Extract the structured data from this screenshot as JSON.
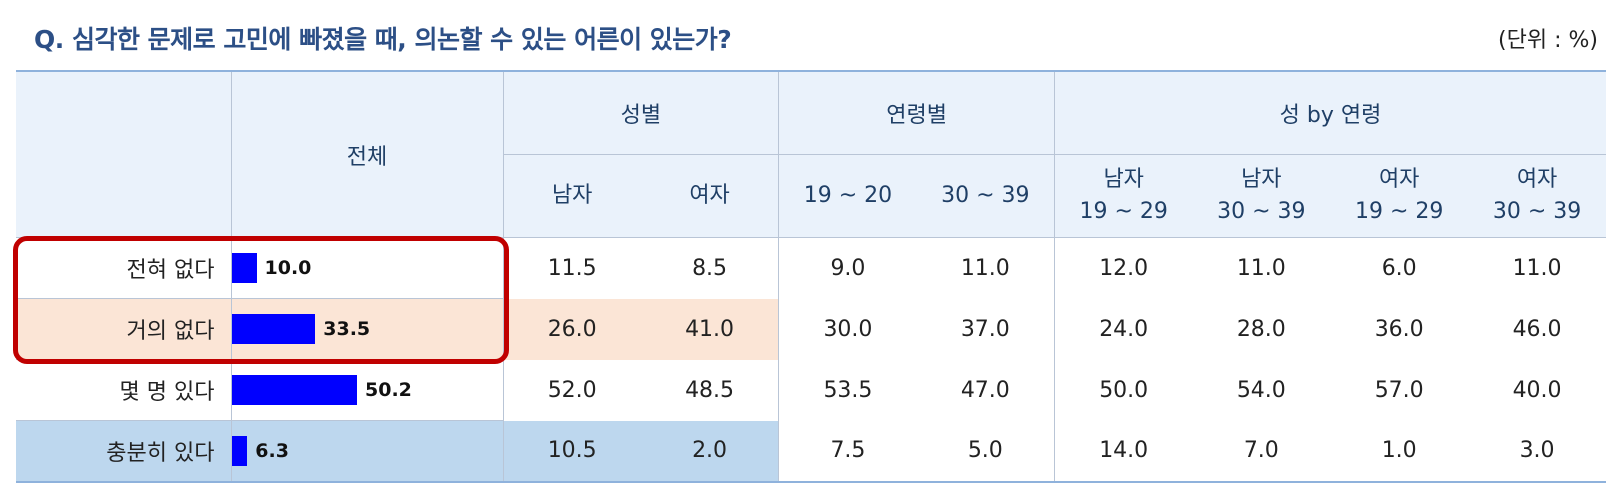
{
  "title": "Q. 심각한 문제로 고민에 빠졌을 때, 의논할 수 있는 어른이 있는가?",
  "unit": "(단위 : %)",
  "header": {
    "total": "전체",
    "groups": [
      "성별",
      "연령별",
      "성 by 연령"
    ],
    "subcolumns": [
      {
        "line1": "남자",
        "line2": ""
      },
      {
        "line1": "여자",
        "line2": ""
      },
      {
        "line1": "19 ~ 20",
        "line2": ""
      },
      {
        "line1": "30 ~ 39",
        "line2": ""
      },
      {
        "line1": "남자",
        "line2": "19 ~ 29"
      },
      {
        "line1": "남자",
        "line2": "30 ~ 39"
      },
      {
        "line1": "여자",
        "line2": "19 ~ 29"
      },
      {
        "line1": "여자",
        "line2": "30 ~ 39"
      }
    ]
  },
  "rows": [
    {
      "label": "전혀 없다",
      "total": "10.0",
      "values": [
        "11.5",
        "8.5",
        "9.0",
        "11.0",
        "12.0",
        "11.0",
        "6.0",
        "11.0"
      ]
    },
    {
      "label": "거의 없다",
      "total": "33.5",
      "values": [
        "26.0",
        "41.0",
        "30.0",
        "37.0",
        "24.0",
        "28.0",
        "36.0",
        "46.0"
      ]
    },
    {
      "label": "몇 명 있다",
      "total": "50.2",
      "values": [
        "52.0",
        "48.5",
        "53.5",
        "47.0",
        "50.0",
        "54.0",
        "57.0",
        "40.0"
      ]
    },
    {
      "label": "충분히 있다",
      "total": "6.3",
      "values": [
        "10.5",
        "2.0",
        "7.5",
        "5.0",
        "14.0",
        "7.0",
        "1.0",
        "3.0"
      ]
    }
  ],
  "colors": {
    "title": "#2c4f86",
    "bar": "#0000ff",
    "highlight_peach": "#fbe5d6",
    "highlight_blue": "#bdd7ee",
    "highlight_box": "#c00000"
  }
}
